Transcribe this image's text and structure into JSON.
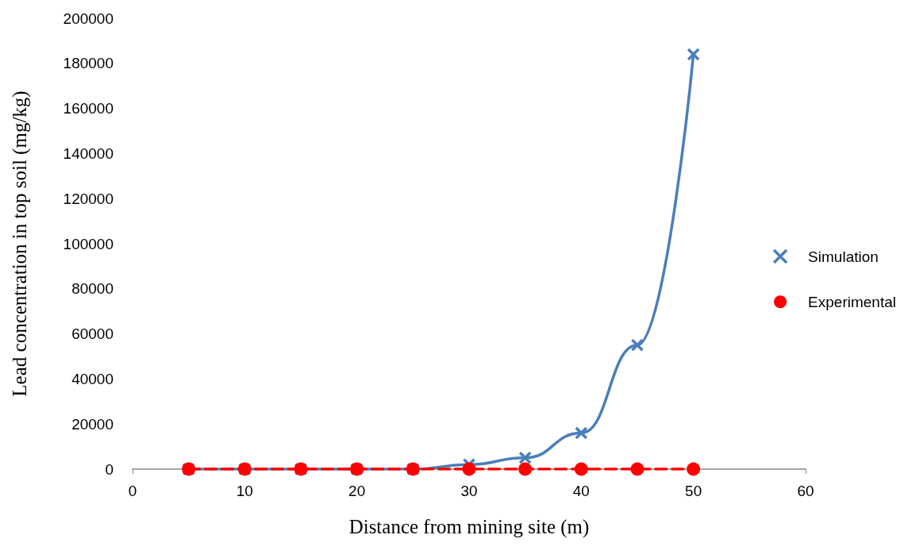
{
  "chart_data": {
    "type": "line",
    "xlabel": "Distance from mining site (m)",
    "ylabel": "Lead concentration in top soil (mg/kg)",
    "x": [
      5,
      10,
      15,
      20,
      25,
      30,
      35,
      40,
      45,
      50
    ],
    "series": [
      {
        "name": "Simulation",
        "color": "#4a7ebb",
        "marker": "cross",
        "line_style": "solid",
        "values": [
          0,
          0,
          0,
          0,
          0,
          2000,
          5000,
          16000,
          55000,
          184000
        ]
      },
      {
        "name": "Experimental",
        "color": "#ff0000",
        "marker": "circle",
        "line_style": "dashed",
        "values": [
          0,
          0,
          0,
          0,
          0,
          0,
          0,
          0,
          0,
          0
        ]
      }
    ],
    "xlim": [
      0,
      60
    ],
    "xticks": [
      0,
      10,
      20,
      30,
      40,
      50,
      60
    ],
    "ylim": [
      0,
      200000
    ],
    "yticks": [
      0,
      20000,
      40000,
      60000,
      80000,
      100000,
      120000,
      140000,
      160000,
      180000,
      200000
    ],
    "grid": false,
    "legend": "right"
  }
}
